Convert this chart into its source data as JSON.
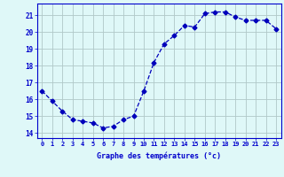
{
  "x": [
    0,
    1,
    2,
    3,
    4,
    5,
    6,
    7,
    8,
    9,
    10,
    11,
    12,
    13,
    14,
    15,
    16,
    17,
    18,
    19,
    20,
    21,
    22,
    23
  ],
  "y": [
    16.5,
    15.9,
    15.3,
    14.8,
    14.7,
    14.6,
    14.3,
    14.4,
    14.8,
    15.0,
    16.5,
    18.2,
    19.3,
    19.8,
    20.4,
    20.3,
    21.1,
    21.2,
    21.2,
    20.9,
    20.7,
    20.7,
    20.7,
    20.2
  ],
  "line_color": "#0000bb",
  "marker": "D",
  "marker_size": 2.5,
  "bg_color": "#dff8f8",
  "grid_color": "#b0c8c8",
  "axis_color": "#0000cc",
  "tick_color": "#0000cc",
  "xlabel": "Graphe des températures (°c)",
  "ylabel_ticks": [
    14,
    15,
    16,
    17,
    18,
    19,
    20,
    21
  ],
  "xlim": [
    -0.5,
    23.5
  ],
  "ylim": [
    13.7,
    21.7
  ]
}
